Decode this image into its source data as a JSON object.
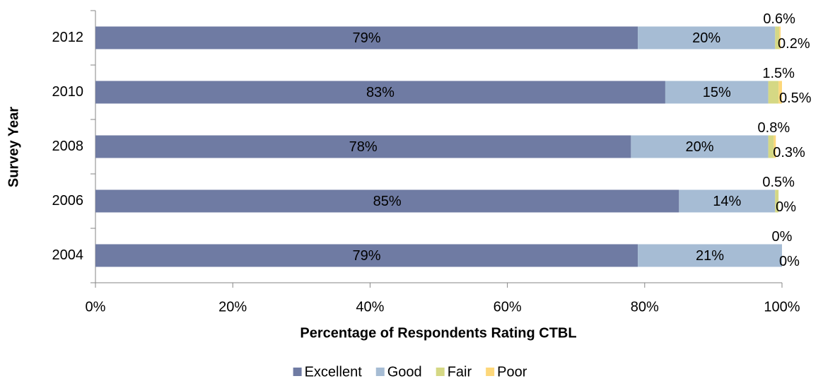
{
  "chart_data": {
    "type": "stacked_barh",
    "xlabel": "Percentage of Respondents Rating CTBL",
    "ylabel": "Survey Year",
    "categories": [
      "2012",
      "2010",
      "2008",
      "2006",
      "2004"
    ],
    "series": [
      {
        "name": "Excellent",
        "color": "#6f7ba3",
        "values": [
          79,
          83,
          78,
          85,
          79
        ],
        "value_labels": [
          "79%",
          "83%",
          "78%",
          "85%",
          "79%"
        ]
      },
      {
        "name": "Good",
        "color": "#a6bcd4",
        "values": [
          20,
          15,
          20,
          14,
          21
        ],
        "value_labels": [
          "20%",
          "15%",
          "20%",
          "14%",
          "21%"
        ]
      },
      {
        "name": "Fair",
        "color": "#d5d884",
        "values": [
          0.6,
          1.5,
          0.8,
          0.5,
          0
        ],
        "value_labels": [
          "0.6%",
          "1.5%",
          "0.8%",
          "0.5%",
          "0%"
        ]
      },
      {
        "name": "Poor",
        "color": "#fdd77a",
        "values": [
          0.2,
          0.5,
          0.3,
          0,
          0
        ],
        "value_labels": [
          "0.2%",
          "0.5%",
          "0.3%",
          "0%",
          "0%"
        ]
      }
    ],
    "xlim": [
      0,
      100
    ],
    "xticks": [
      {
        "value": 0,
        "label": "0%"
      },
      {
        "value": 20,
        "label": "20%"
      },
      {
        "value": 40,
        "label": "40%"
      },
      {
        "value": 60,
        "label": "60%"
      },
      {
        "value": 80,
        "label": "80%"
      },
      {
        "value": 100,
        "label": "100%"
      }
    ],
    "legend": "bottom"
  }
}
